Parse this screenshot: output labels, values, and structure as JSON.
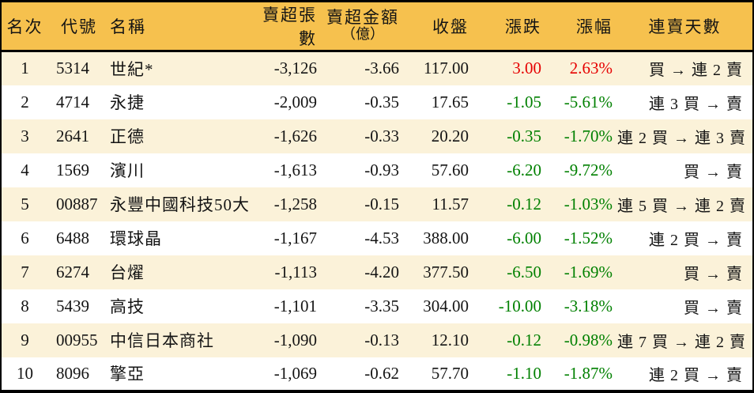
{
  "colors": {
    "header_bg": "#f6c14e",
    "row_alt_bg": "#fbf2d9",
    "up": "#e60000",
    "down": "#008000",
    "border": "#000000"
  },
  "table": {
    "columns": [
      {
        "key": "rank",
        "label": "名次"
      },
      {
        "key": "code",
        "label": "代號"
      },
      {
        "key": "name",
        "label": "名稱"
      },
      {
        "key": "sell_volume",
        "label": "賣超張數"
      },
      {
        "key": "sell_amount",
        "label": "賣超金額",
        "label2": "（億）"
      },
      {
        "key": "close",
        "label": "收盤"
      },
      {
        "key": "change",
        "label": "漲跌"
      },
      {
        "key": "change_pct",
        "label": "漲幅"
      },
      {
        "key": "streak",
        "label": "連賣天數"
      }
    ],
    "rows": [
      {
        "rank": "1",
        "code": "5314",
        "name": "世紀*",
        "sell_volume": "-3,126",
        "sell_amount": "-3.66",
        "close": "117.00",
        "change": "3.00",
        "change_pct": "2.63%",
        "change_dir": "up",
        "streak": "買 → 連 2 賣"
      },
      {
        "rank": "2",
        "code": "4714",
        "name": "永捷",
        "sell_volume": "-2,009",
        "sell_amount": "-0.35",
        "close": "17.65",
        "change": "-1.05",
        "change_pct": "-5.61%",
        "change_dir": "down",
        "streak": "連 3 買 → 賣"
      },
      {
        "rank": "3",
        "code": "2641",
        "name": "正德",
        "sell_volume": "-1,626",
        "sell_amount": "-0.33",
        "close": "20.20",
        "change": "-0.35",
        "change_pct": "-1.70%",
        "change_dir": "down",
        "streak": "連 2 買 → 連 3 賣"
      },
      {
        "rank": "4",
        "code": "1569",
        "name": "濱川",
        "sell_volume": "-1,613",
        "sell_amount": "-0.93",
        "close": "57.60",
        "change": "-6.20",
        "change_pct": "-9.72%",
        "change_dir": "down",
        "streak": "買 → 賣"
      },
      {
        "rank": "5",
        "code": "00887",
        "name": "永豐中國科技50大",
        "sell_volume": "-1,258",
        "sell_amount": "-0.15",
        "close": "11.57",
        "change": "-0.12",
        "change_pct": "-1.03%",
        "change_dir": "down",
        "streak": "連 5 買 → 連 2 賣"
      },
      {
        "rank": "6",
        "code": "6488",
        "name": "環球晶",
        "sell_volume": "-1,167",
        "sell_amount": "-4.53",
        "close": "388.00",
        "change": "-6.00",
        "change_pct": "-1.52%",
        "change_dir": "down",
        "streak": "連 2 買 → 賣"
      },
      {
        "rank": "7",
        "code": "6274",
        "name": "台燿",
        "sell_volume": "-1,113",
        "sell_amount": "-4.20",
        "close": "377.50",
        "change": "-6.50",
        "change_pct": "-1.69%",
        "change_dir": "down",
        "streak": "買 → 賣"
      },
      {
        "rank": "8",
        "code": "5439",
        "name": "高技",
        "sell_volume": "-1,101",
        "sell_amount": "-3.35",
        "close": "304.00",
        "change": "-10.00",
        "change_pct": "-3.18%",
        "change_dir": "down",
        "streak": "買 → 賣"
      },
      {
        "rank": "9",
        "code": "00955",
        "name": "中信日本商社",
        "sell_volume": "-1,090",
        "sell_amount": "-0.13",
        "close": "12.10",
        "change": "-0.12",
        "change_pct": "-0.98%",
        "change_dir": "down",
        "streak": "連 7 買 → 連 2 賣"
      },
      {
        "rank": "10",
        "code": "8096",
        "name": "擎亞",
        "sell_volume": "-1,069",
        "sell_amount": "-0.62",
        "close": "57.70",
        "change": "-1.10",
        "change_pct": "-1.87%",
        "change_dir": "down",
        "streak": "連 2 買 → 賣"
      }
    ]
  }
}
